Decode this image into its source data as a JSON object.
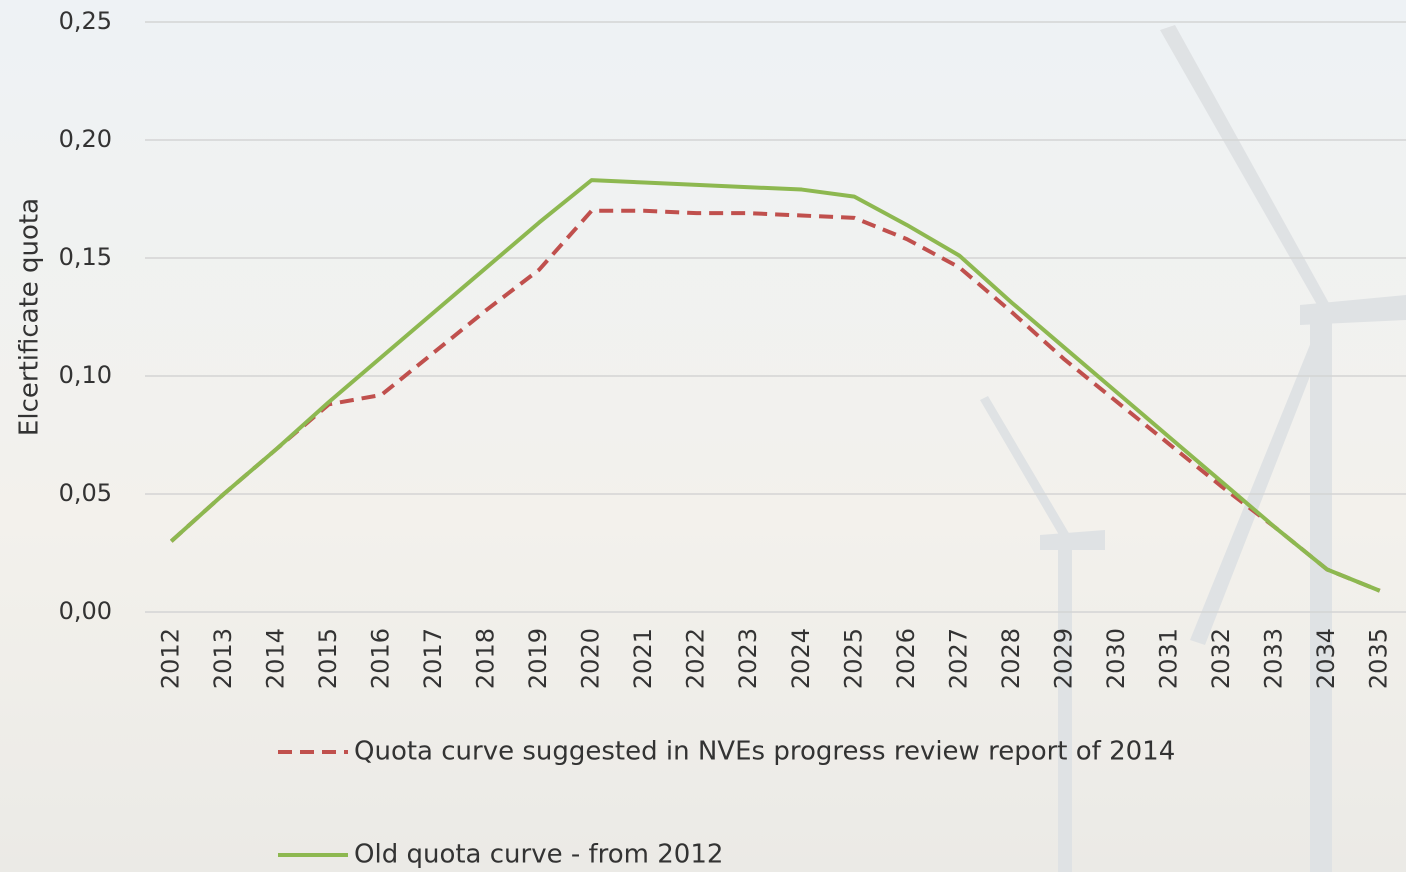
{
  "chart_data": {
    "type": "line",
    "y_label": "Elcertificate quota",
    "categories": [
      "2012",
      "2013",
      "2014",
      "2015",
      "2016",
      "2017",
      "2018",
      "2019",
      "2020",
      "2021",
      "2022",
      "2023",
      "2024",
      "2025",
      "2026",
      "2027",
      "2028",
      "2029",
      "2030",
      "2031",
      "2032",
      "2033",
      "2034",
      "2035"
    ],
    "series": [
      {
        "name": "Quota curve suggested in NVEs progress review report of 2014",
        "color": "#c0504d",
        "dashed": true,
        "values": [
          0.03,
          0.05,
          0.069,
          0.088,
          0.092,
          0.11,
          0.128,
          0.145,
          0.17,
          0.17,
          0.169,
          0.169,
          0.168,
          0.167,
          0.158,
          0.146,
          0.127,
          0.107,
          0.089,
          0.071,
          0.053,
          0.036,
          0.018,
          0.009
        ]
      },
      {
        "name": "Old quota curve - from 2012",
        "color": "#8db850",
        "dashed": false,
        "values": [
          0.03,
          0.05,
          0.069,
          0.089,
          0.108,
          0.127,
          0.146,
          0.165,
          0.183,
          0.182,
          0.181,
          0.18,
          0.179,
          0.176,
          0.164,
          0.151,
          0.131,
          0.112,
          0.093,
          0.074,
          0.055,
          0.036,
          0.018,
          0.009
        ]
      }
    ],
    "ylim": [
      0,
      0.25
    ],
    "yticks": [
      {
        "value": 0,
        "label": "0,00"
      },
      {
        "value": 0.05,
        "label": "0,05"
      },
      {
        "value": 0.1,
        "label": "0,10"
      },
      {
        "value": 0.15,
        "label": "0,15"
      },
      {
        "value": 0.2,
        "label": "0,20"
      },
      {
        "value": 0.25,
        "label": "0,25"
      }
    ],
    "grid": true
  }
}
